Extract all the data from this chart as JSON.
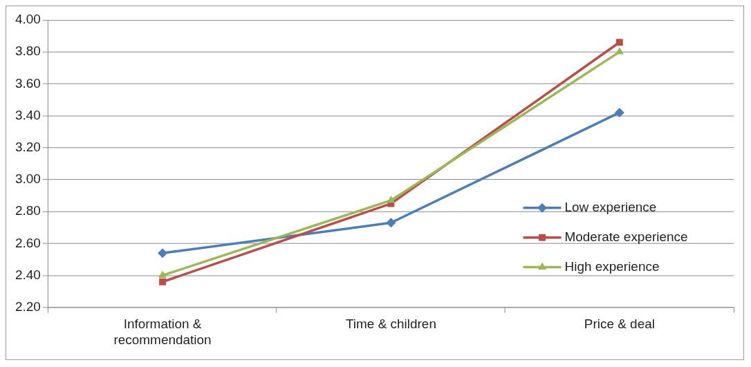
{
  "chart_data": {
    "type": "line",
    "categories": [
      "Information & recommendation",
      "Time & children",
      "Price & deal"
    ],
    "series": [
      {
        "name": "Low experience",
        "color": "#4a7ebb",
        "marker": "diamond",
        "values": [
          2.54,
          2.73,
          3.42
        ]
      },
      {
        "name": "Moderate experience",
        "color": "#be4b48",
        "marker": "square",
        "values": [
          2.36,
          2.85,
          3.86
        ]
      },
      {
        "name": "High experience",
        "color": "#98b954",
        "marker": "triangle",
        "values": [
          2.4,
          2.87,
          3.8
        ]
      }
    ],
    "ylim": [
      2.2,
      4.0
    ],
    "yticks": [
      {
        "value": 2.2,
        "label": "2.20"
      },
      {
        "value": 2.4,
        "label": "2.40"
      },
      {
        "value": 2.6,
        "label": "2.60"
      },
      {
        "value": 2.8,
        "label": "2.80"
      },
      {
        "value": 3.0,
        "label": "3.00"
      },
      {
        "value": 3.2,
        "label": "3.20"
      },
      {
        "value": 3.4,
        "label": "3.40"
      },
      {
        "value": 3.6,
        "label": "3.60"
      },
      {
        "value": 3.8,
        "label": "3.80"
      },
      {
        "value": 4.0,
        "label": "4.00"
      }
    ],
    "grid": "y",
    "legend": "right",
    "line_style": "solid"
  }
}
